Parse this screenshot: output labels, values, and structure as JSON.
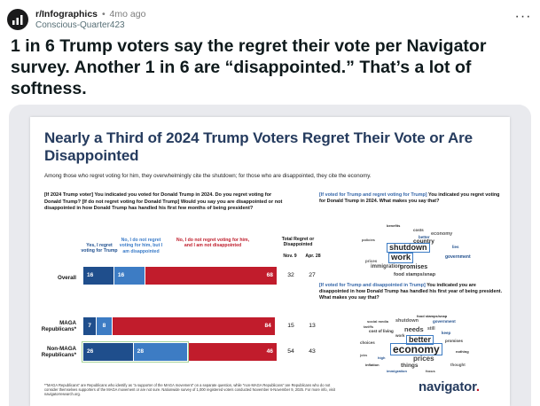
{
  "post": {
    "subreddit": "r/Infographics",
    "separator": "•",
    "time_ago": "4mo ago",
    "author": "Conscious-Quarter423",
    "more_label": "···",
    "title": "1 in 6 Trump voters say the regret their vote per Navigator survey. Another 1 in 6 are “disappointed.” That’s a lot of softness."
  },
  "infographic": {
    "title": "Nearly a Third of 2024 Trump Voters Regret Their Vote or Are Disappointed",
    "subtitle": "Among those who regret voting for him, they overwhelmingly cite the shutdown; for those who are disappointed, they cite the economy.",
    "question": "[If 2024 Trump voter] You indicated you voted for Donald Trump in 2024. Do you regret voting for Donald Trump? [If do not regret voting for Donald Trump] Would you say you are disappointed or not disappointed in how Donald Trump has handled his first few months of being president?",
    "columns": {
      "yes": "Yes, I regret voting for Trump",
      "no_but": "No, I do not regret voting for him, but I am disappointed",
      "no_not": "No, I do not regret voting for him, and I am not disappointed",
      "total": "Total Regret or Disappointed",
      "nov": "Nov. 9",
      "apr": "Apr. 28"
    },
    "wordcloud1_question_hl": "[If voted for Trump and regret voting for Trump]",
    "wordcloud1_question": " You indicated you regret voting for Donald Trump in 2024. What makes you say that?",
    "wordcloud2_question_hl": "[If voted for Trump and disappointed in Trump]",
    "wordcloud2_question": " You indicated you are disappointed in how Donald Trump has handled his first year of being president. What makes you say that?",
    "footnote": "*\"MAGA Republicans\" are Republicans who identify as \"a supporter of the MAGA movement\" on a separate question, while \"non-MAGA Republicans\" are Republicans who do not consider themselves supporters of the MAGA movement or are not sure. Nationwide survey of 1,000 registered voters conducted November 6-November 9, 2025. For more info, visit navigatorresearch.org.",
    "brand": "navigator",
    "brand_dot": "."
  },
  "chart_data": {
    "type": "bar",
    "stacked": true,
    "title": "Nearly a Third of 2024 Trump Voters Regret Their Vote or Are Disappointed",
    "categories": [
      "Overall",
      "MAGA Republicans*",
      "Non-MAGA Republicans*"
    ],
    "series": [
      {
        "name": "Yes, I regret voting for Trump",
        "color": "#1f4e8c",
        "values": [
          16,
          7,
          26
        ]
      },
      {
        "name": "No, I do not regret voting for him, but I am disappointed",
        "color": "#3d7cc4",
        "values": [
          16,
          8,
          28
        ]
      },
      {
        "name": "No, I do not regret voting for him, and I am not disappointed",
        "color": "#c11c2c",
        "values": [
          68,
          84,
          46
        ]
      }
    ],
    "total_regret_or_disappointed": {
      "Nov. 9": [
        32,
        15,
        54
      ],
      "Apr. 28": [
        27,
        13,
        43
      ]
    },
    "highlighted_category": "Non-MAGA Republicans*"
  },
  "wordcloud1": [
    "benefits",
    "costs",
    "economy",
    "better",
    "policies",
    "country",
    "shutdown",
    "work",
    "government",
    "immigration",
    "promises",
    "food stamps/snap",
    "prices",
    "lies"
  ],
  "wordcloud2": [
    "food stamps/snap",
    "social media",
    "shutdown",
    "government",
    "tariffs",
    "cost of living",
    "needs",
    "still",
    "keep",
    "work",
    "better",
    "promises",
    "economy",
    "high",
    "prices",
    "inflation",
    "things",
    "thought",
    "immigration",
    "choices",
    "nothing",
    "focus",
    "jobs"
  ]
}
